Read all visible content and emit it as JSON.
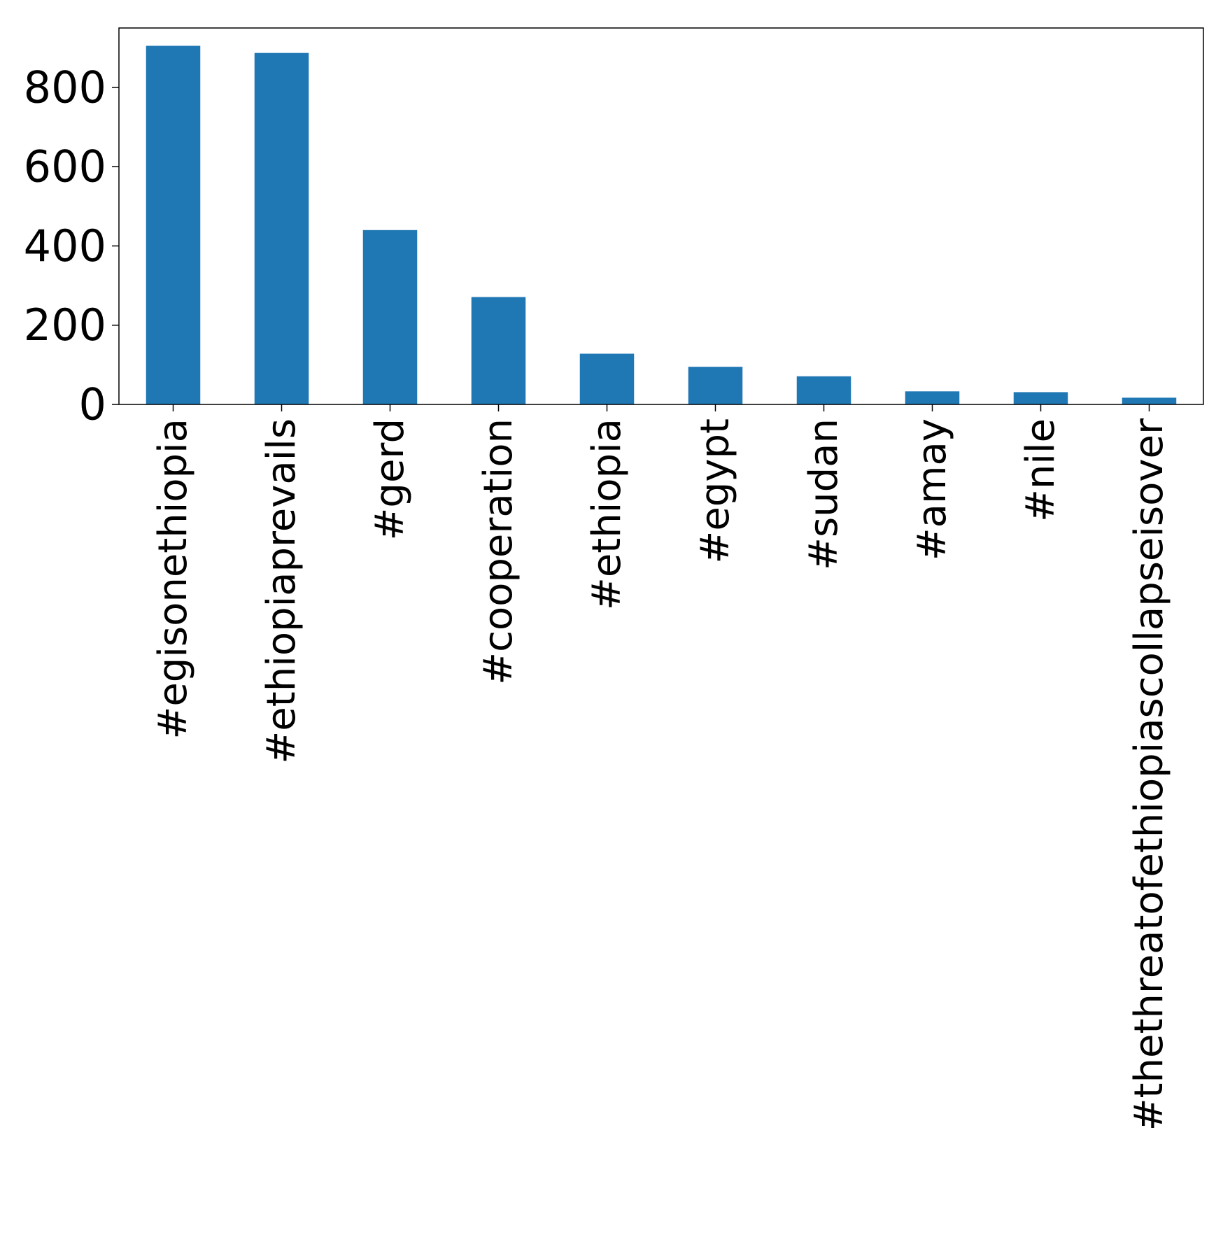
{
  "chart_data": {
    "type": "bar",
    "categories": [
      "#egisonethiopia",
      "#ethiopiaprevails",
      "#gerd",
      "#cooperation",
      "#ethiopia",
      "#egypt",
      "#sudan",
      "#amay",
      "#nile",
      "#thethreatofethiopiascollapseisover"
    ],
    "values": [
      905,
      887,
      440,
      271,
      128,
      95,
      71,
      33,
      31,
      17
    ],
    "title": "",
    "xlabel": "",
    "ylabel": "",
    "ylim": [
      0,
      950
    ],
    "yticks": [
      0,
      200,
      400,
      600,
      800
    ],
    "grid": false,
    "legend": "none",
    "colors": {
      "bar": "#1f77b4",
      "axis": "#000000",
      "background": "#ffffff"
    }
  }
}
